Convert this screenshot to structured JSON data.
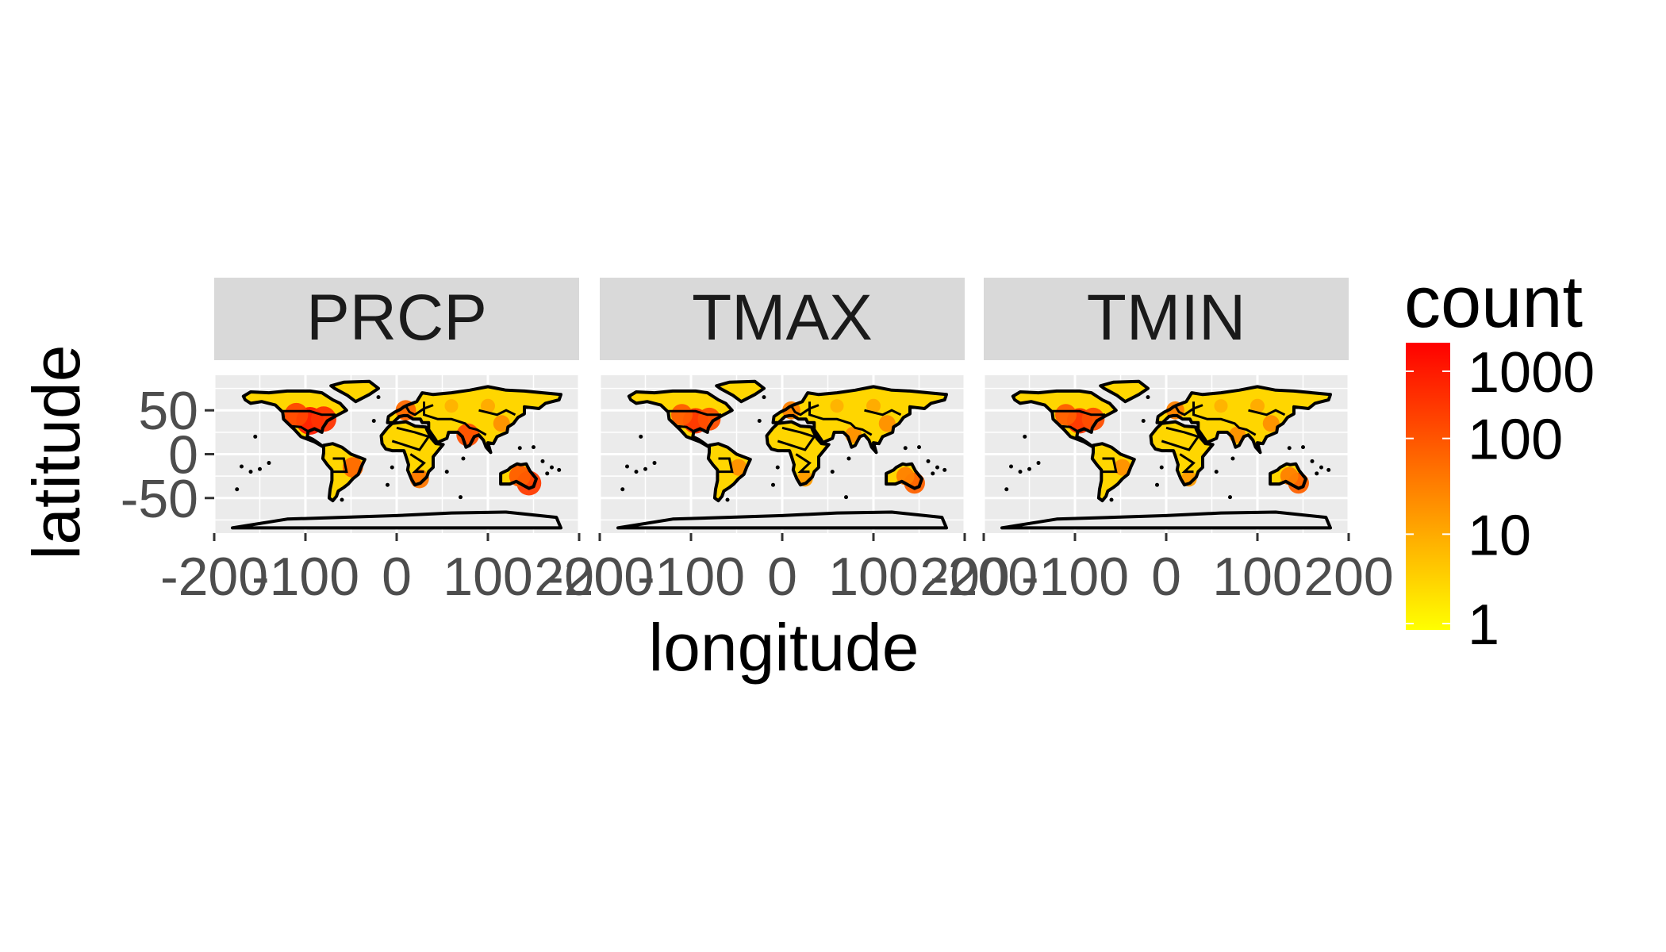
{
  "chart_data": {
    "type": "heatmap",
    "facet_variable": "element",
    "panels": [
      {
        "label": "PRCP",
        "hotspots": [
          {
            "x": -95,
            "y": 38,
            "count": 500
          },
          {
            "x": -80,
            "y": 40,
            "count": 250
          },
          {
            "x": -110,
            "y": 45,
            "count": 150
          },
          {
            "x": 10,
            "y": 50,
            "count": 60
          },
          {
            "x": 78,
            "y": 22,
            "count": 120
          },
          {
            "x": 145,
            "y": -33,
            "count": 200
          },
          {
            "x": 135,
            "y": -25,
            "count": 80
          },
          {
            "x": -48,
            "y": -15,
            "count": 60
          },
          {
            "x": 25,
            "y": -28,
            "count": 40
          },
          {
            "x": 100,
            "y": 55,
            "count": 10
          },
          {
            "x": 60,
            "y": 55,
            "count": 8
          },
          {
            "x": 115,
            "y": 35,
            "count": 20
          }
        ]
      },
      {
        "label": "TMAX",
        "hotspots": [
          {
            "x": -95,
            "y": 38,
            "count": 250
          },
          {
            "x": -80,
            "y": 40,
            "count": 120
          },
          {
            "x": -110,
            "y": 45,
            "count": 80
          },
          {
            "x": 10,
            "y": 50,
            "count": 30
          },
          {
            "x": 78,
            "y": 22,
            "count": 20
          },
          {
            "x": 145,
            "y": -33,
            "count": 70
          },
          {
            "x": 135,
            "y": -25,
            "count": 30
          },
          {
            "x": -48,
            "y": -15,
            "count": 20
          },
          {
            "x": 25,
            "y": -28,
            "count": 15
          },
          {
            "x": 100,
            "y": 55,
            "count": 10
          },
          {
            "x": 60,
            "y": 55,
            "count": 8
          },
          {
            "x": 115,
            "y": 35,
            "count": 20
          }
        ]
      },
      {
        "label": "TMIN",
        "hotspots": [
          {
            "x": -95,
            "y": 38,
            "count": 250
          },
          {
            "x": -80,
            "y": 40,
            "count": 120
          },
          {
            "x": -110,
            "y": 45,
            "count": 80
          },
          {
            "x": 10,
            "y": 50,
            "count": 30
          },
          {
            "x": 78,
            "y": 22,
            "count": 20
          },
          {
            "x": 145,
            "y": -33,
            "count": 70
          },
          {
            "x": 135,
            "y": -25,
            "count": 30
          },
          {
            "x": -48,
            "y": -15,
            "count": 20
          },
          {
            "x": 25,
            "y": -28,
            "count": 15
          },
          {
            "x": 100,
            "y": 55,
            "count": 10
          },
          {
            "x": 60,
            "y": 55,
            "count": 8
          },
          {
            "x": 115,
            "y": 35,
            "count": 20
          }
        ]
      }
    ],
    "xlabel": "longitude",
    "ylabel": "latitude",
    "xlim": [
      -200,
      200
    ],
    "ylim": [
      -90,
      90
    ],
    "x_ticks": [
      -200,
      -100,
      0,
      100,
      200
    ],
    "x_tick_labels": [
      "-200",
      "-100",
      "0",
      "100",
      "200"
    ],
    "y_ticks": [
      50,
      0,
      -50
    ],
    "y_tick_labels": [
      "50",
      "0",
      "-50"
    ],
    "grid": true,
    "legend": {
      "title": "count",
      "position": "right",
      "scale": "log10",
      "range": [
        1,
        1000
      ],
      "breaks": [
        1000,
        100,
        10,
        1
      ],
      "break_labels": [
        "1000",
        "100",
        "10",
        "1"
      ],
      "color_low": "#ffff00",
      "color_high": "#ff0000"
    },
    "colors": {
      "panel_background": "#ebebeb",
      "grid": "#ffffff",
      "strip_background": "#d9d9d9",
      "outline": "#000000",
      "tick_text": "#4d4d4d"
    }
  }
}
